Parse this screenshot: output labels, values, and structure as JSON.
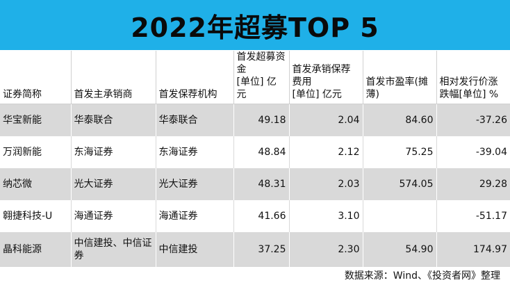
{
  "title": "2022年超募TOP 5",
  "headers": [
    [
      "证券简称"
    ],
    [
      "首发主承销商"
    ],
    [
      "首发保荐机构"
    ],
    [
      "首发超募资",
      "金",
      "[单位] 亿元"
    ],
    [
      "首发承销保荐",
      "费用",
      "[单位] 亿元"
    ],
    [
      "首发市盈率(摊",
      "薄)"
    ],
    [
      "相对发行价涨",
      "跌幅[单位] %"
    ]
  ],
  "rows": [
    {
      "name": "华宝新能",
      "underwriter": "华泰联合",
      "sponsor": "华泰联合",
      "over_raised": "49.18",
      "fee": "2.04",
      "pe": "84.60",
      "change": "-37.26"
    },
    {
      "name": "万润新能",
      "underwriter": "东海证券",
      "sponsor": "东海证券",
      "over_raised": "48.84",
      "fee": "2.12",
      "pe": "75.25",
      "change": "-39.04"
    },
    {
      "name": "纳芯微",
      "underwriter": "光大证券",
      "sponsor": "光大证券",
      "over_raised": "48.31",
      "fee": "2.03",
      "pe": "574.05",
      "change": "29.28"
    },
    {
      "name": "翱捷科技-U",
      "underwriter": "海通证券",
      "sponsor": "海通证券",
      "over_raised": "41.66",
      "fee": "3.10",
      "pe": "",
      "change": "-51.17"
    },
    {
      "name": "晶科能源",
      "underwriter": "中信建投、中信证券",
      "sponsor": "中信建投",
      "over_raised": "37.25",
      "fee": "2.30",
      "pe": "54.90",
      "change": "174.97"
    }
  ],
  "source": "数据来源：Wind、《投资者网》整理"
}
